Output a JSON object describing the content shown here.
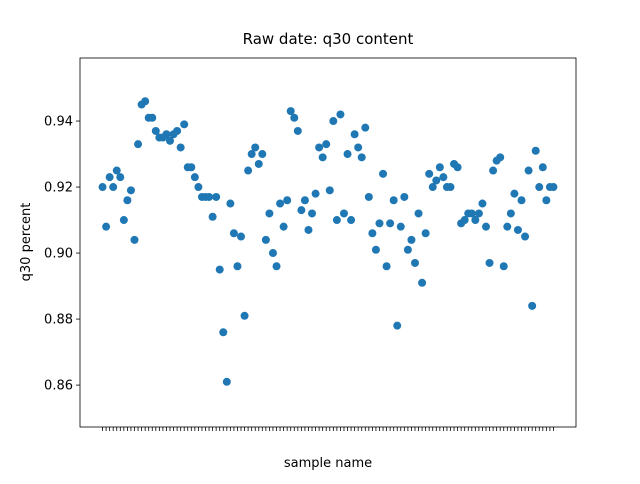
{
  "chart_data": {
    "type": "scatter",
    "title": "Raw date: q30 content",
    "x_label": "sample name",
    "y_label": "q30 percent",
    "color": "#1f77b4",
    "categories": [
      null,
      null,
      null,
      null,
      null,
      null,
      null,
      null,
      null,
      null,
      null,
      null,
      null,
      null,
      null,
      null,
      null,
      null,
      null,
      null,
      null,
      null,
      null,
      null,
      null,
      null,
      null,
      null,
      null,
      null,
      null,
      null,
      null,
      null,
      null,
      null,
      null,
      null,
      null,
      null,
      null,
      null,
      null,
      null,
      null,
      null,
      null,
      null,
      null,
      null,
      null,
      null,
      null,
      null,
      null,
      null,
      null,
      null,
      null,
      null,
      null,
      null,
      null,
      null,
      null,
      null,
      null,
      null,
      null,
      null,
      null,
      null,
      null,
      null,
      null,
      null,
      null,
      null,
      null,
      null,
      null,
      null,
      null,
      null,
      null,
      null,
      null,
      null,
      null,
      null,
      null,
      null,
      null,
      null,
      null,
      null,
      null,
      null,
      null,
      null,
      null,
      null,
      null,
      null,
      null,
      null,
      null,
      null,
      null,
      null,
      null,
      null,
      null,
      null,
      null,
      null,
      null,
      null,
      null,
      null,
      null,
      null,
      null,
      null,
      null,
      null,
      null,
      null
    ],
    "values": [
      0.92,
      0.908,
      0.923,
      0.92,
      0.925,
      0.923,
      0.91,
      0.916,
      0.919,
      0.904,
      0.933,
      0.945,
      0.946,
      0.941,
      0.941,
      0.937,
      0.935,
      0.935,
      0.936,
      0.934,
      0.936,
      0.937,
      0.932,
      0.939,
      0.926,
      0.926,
      0.923,
      0.92,
      0.917,
      0.917,
      0.917,
      0.911,
      0.917,
      0.895,
      0.876,
      0.861,
      0.915,
      0.906,
      0.896,
      0.905,
      0.881,
      0.925,
      0.93,
      0.932,
      0.927,
      0.93,
      0.904,
      0.912,
      0.9,
      0.896,
      0.915,
      0.908,
      0.916,
      0.943,
      0.941,
      0.937,
      0.913,
      0.916,
      0.907,
      0.912,
      0.918,
      0.932,
      0.929,
      0.933,
      0.919,
      0.94,
      0.91,
      0.942,
      0.912,
      0.93,
      0.91,
      0.936,
      0.932,
      0.929,
      0.938,
      0.917,
      0.906,
      0.901,
      0.909,
      0.924,
      0.896,
      0.909,
      0.916,
      0.878,
      0.908,
      0.917,
      0.901,
      0.904,
      0.897,
      0.912,
      0.891,
      0.906,
      0.924,
      0.92,
      0.922,
      0.926,
      0.923,
      0.92,
      0.92,
      0.927,
      0.926,
      0.909,
      0.91,
      0.912,
      0.912,
      0.91,
      0.912,
      0.915,
      0.908,
      0.897,
      0.925,
      0.928,
      0.929,
      0.896,
      0.908,
      0.912,
      0.918,
      0.907,
      0.916,
      0.905,
      0.925,
      0.884,
      0.931,
      0.92,
      0.926,
      0.916,
      0.92,
      0.92
    ],
    "ylim": [
      0.8473,
      0.9591
    ],
    "yticks": [
      0.86,
      0.88,
      {
        "value": 0.9,
        "label": "0.90"
      },
      0.92,
      0.94
    ]
  }
}
